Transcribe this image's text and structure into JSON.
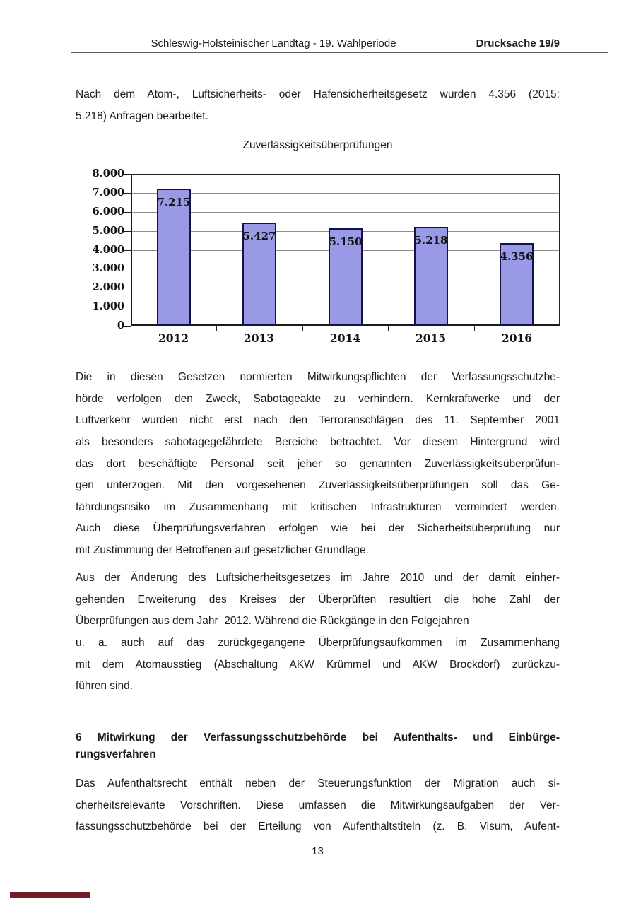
{
  "header": {
    "title": "Schleswig-Holsteinischer Landtag - 19. Wahlperiode",
    "doc_number": "Drucksache 19/9"
  },
  "intro": {
    "lines": [
      {
        "t": "Nach dem Atom-, Luftsicherheits- oder Hafensicherheitsgesetz wurden 4.356 (2015:",
        "j": true
      },
      {
        "t": "5.218) Anfragen bearbeitet.",
        "j": false
      }
    ]
  },
  "chart_data": {
    "type": "bar",
    "title": "Zuverlässigkeitsüberprüfungen",
    "categories": [
      "2012",
      "2013",
      "2014",
      "2015",
      "2016"
    ],
    "values": [
      7215,
      5427,
      5150,
      5218,
      4356
    ],
    "value_labels": [
      "7.215",
      "5.427",
      "5.150",
      "5.218",
      "4.356"
    ],
    "xlabel": "",
    "ylabel": "",
    "ylim": [
      0,
      8000
    ],
    "ytick_step": 1000,
    "ytick_labels": [
      "8.000",
      "7.000",
      "6.000",
      "5.000",
      "4.000",
      "3.000",
      "2.000",
      "1.000",
      "0"
    ],
    "grid": true,
    "legend": false,
    "bar_color": "#9999e6",
    "bar_border_color": "#13134a"
  },
  "paragraphs": {
    "mitwirkungspflichten": {
      "lines": [
        {
          "t": "Die in diesen Gesetzen normierten Mitwirkungspflichten der Verfassungsschutzbe-",
          "j": true
        },
        {
          "t": "hörde verfolgen den Zweck, Sabotageakte zu verhindern. Kernkraftwerke und der",
          "j": true
        },
        {
          "t": "Luftverkehr wurden nicht erst nach den Terroranschlägen des 11. September 2001",
          "j": true
        },
        {
          "t": "als besonders sabotagegefährdete Bereiche betrachtet. Vor diesem Hintergrund wird",
          "j": true
        },
        {
          "t": "das dort beschäftigte Personal seit jeher so genannten Zuverlässigkeitsüberprüfun-",
          "j": true
        },
        {
          "t": "gen unterzogen. Mit den vorgesehenen Zuverlässigkeitsüberprüfungen soll das Ge-",
          "j": true
        },
        {
          "t": "fährdungsrisiko im Zusammenhang mit kritischen Infrastrukturen vermindert werden.",
          "j": true
        },
        {
          "t": "Auch diese Überprüfungsverfahren erfolgen wie bei der Sicherheitsüberprüfung nur",
          "j": true
        },
        {
          "t": "mit Zustimmung der Betroffenen auf gesetzlicher Grundlage.",
          "j": false
        }
      ]
    },
    "aenderung": {
      "lines": [
        {
          "t": "Aus der Änderung des Luftsicherheitsgesetzes im Jahre 2010 und der damit einher-",
          "j": true
        },
        {
          "t": "gehenden Erweiterung des Kreises der Überprüften resultiert die hohe Zahl der",
          "j": true
        },
        {
          "t": "Überprüfungen aus dem Jahr  2012. Während die Rückgänge in den Folgejahren",
          "j": false
        },
        {
          "t": "u. a. auch auf das zurückgegangene Überprüfungsaufkommen im Zusammenhang",
          "j": true
        },
        {
          "t": "mit dem Atomausstieg (Abschaltung AKW Krümmel und AKW Brockdorf) zurückzu-",
          "j": true
        },
        {
          "t": "führen sind.",
          "j": false
        }
      ]
    },
    "aufenthalt": {
      "lines": [
        {
          "t": "Das Aufenthaltsrecht enthält neben der Steuerungsfunktion der Migration auch si-",
          "j": true
        },
        {
          "t": "cherheitsrelevante Vorschriften. Diese umfassen die Mitwirkungsaufgaben der Ver-",
          "j": true
        },
        {
          "t": "fassungsschutzbehörde bei der Erteilung von Aufenthaltstiteln (z. B. Visum, Aufent-",
          "j": true
        }
      ]
    }
  },
  "heading6": {
    "lines": [
      {
        "t": "6 Mitwirkung der Verfassungsschutzbehörde bei Aufenthalts- und Einbürge-",
        "j": true
      },
      {
        "t": "rungsverfahren",
        "j": false
      }
    ]
  },
  "footer": {
    "page_number": "13"
  },
  "colors": {
    "text": "#1c1c1c",
    "header_rule": "#5a5a5a",
    "gridline": "#8c8c8c",
    "plot_frame": "#222222",
    "bottom_left_marker": "#6e2027"
  }
}
